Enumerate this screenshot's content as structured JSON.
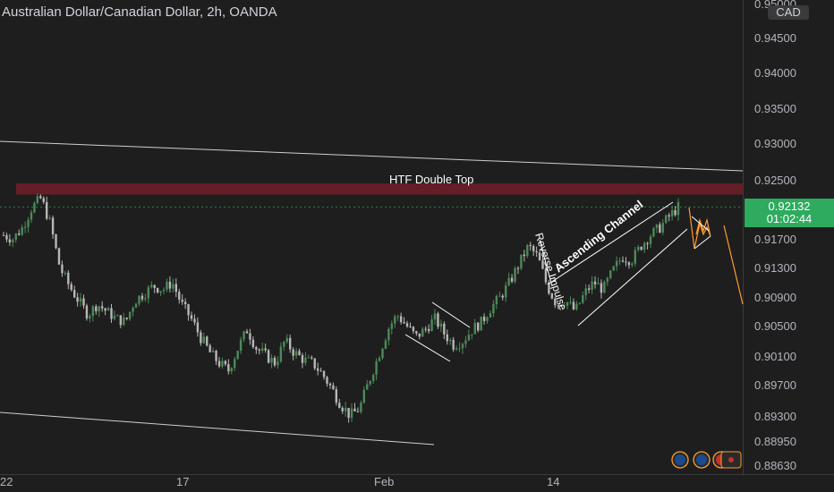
{
  "title": "Australian Dollar/Canadian Dollar, 2h, OANDA",
  "currency_badge": "CAD",
  "current_price": "0.92132",
  "countdown": "01:02:44",
  "colors": {
    "background": "#1e1e1e",
    "up": "#4c8a57",
    "down": "#b7b7b7",
    "zone": "#6b1e26",
    "price_box": "#2eab5f",
    "projection": "#ff9b2f"
  },
  "chart_data": {
    "type": "candlestick",
    "instrument": "AUDCAD",
    "timeframe": "2h",
    "ylim": [
      0.8855,
      0.9505
    ],
    "y_ticks": [
      "0.95000",
      "0.94500",
      "0.94000",
      "0.93500",
      "0.93000",
      "0.92500",
      "0.91700",
      "0.91300",
      "0.90900",
      "0.90500",
      "0.90100",
      "0.89700",
      "0.89300",
      "0.88950",
      "0.88630"
    ],
    "x_ticks": [
      "22",
      "17",
      "Feb",
      "14"
    ],
    "close_path": [
      0.9175,
      0.917,
      0.9185,
      0.9212,
      0.9225,
      0.919,
      0.913,
      0.9105,
      0.9085,
      0.9065,
      0.908,
      0.907,
      0.906,
      0.9055,
      0.9085,
      0.9095,
      0.9105,
      0.91,
      0.911,
      0.908,
      0.906,
      0.9035,
      0.9015,
      0.9,
      0.899,
      0.902,
      0.9045,
      0.902,
      0.901,
      0.9,
      0.903,
      0.9015,
      0.9005,
      0.9,
      0.8985,
      0.8965,
      0.8945,
      0.893,
      0.894,
      0.8975,
      0.901,
      0.9045,
      0.9065,
      0.905,
      0.9035,
      0.9045,
      0.906,
      0.904,
      0.9025,
      0.903,
      0.9045,
      0.9055,
      0.9075,
      0.909,
      0.911,
      0.9135,
      0.916,
      0.9145,
      0.9105,
      0.908,
      0.9085,
      0.907,
      0.9095,
      0.911,
      0.91,
      0.9125,
      0.9145,
      0.914,
      0.916,
      0.9175,
      0.9185,
      0.92,
      0.9213
    ],
    "annotations": {
      "zone_label": "HTF Double Top",
      "channel_label": "Ascending Channel",
      "impulse_label": "Reverse Impulse"
    }
  }
}
